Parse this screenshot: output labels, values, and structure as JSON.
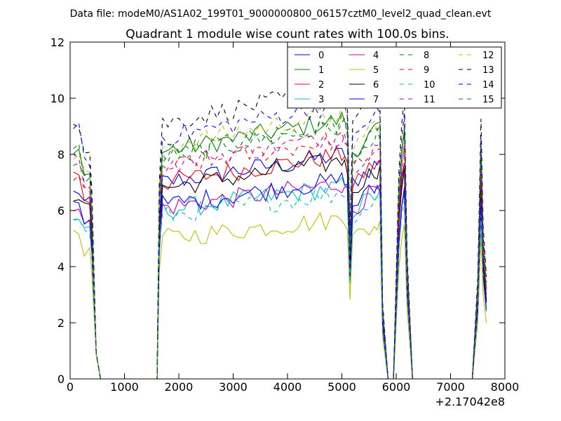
{
  "suptitle": "Data file: modeM0/AS1A02_199T01_9000000800_06157cztM0_level2_quad_clean.evt",
  "chart_data": {
    "type": "line",
    "title": "Quadrant 1 module wise count rates with 100.0s bins.",
    "xlabel": "",
    "ylabel": "",
    "x_offset_label": "+2.17042e8",
    "xlim": [
      0,
      8000
    ],
    "ylim": [
      0,
      12
    ],
    "xticks": [
      0,
      1000,
      2000,
      3000,
      4000,
      5000,
      6000,
      7000,
      8000
    ],
    "yticks": [
      0,
      2,
      4,
      6,
      8,
      10,
      12
    ],
    "grid": false,
    "legend_position": "top-right",
    "legend_columns": 4,
    "segments": [
      {
        "x": [
          60,
          160,
          260,
          360,
          400,
          480,
          560
        ],
        "drop_to": [
          360,
          480,
          560
        ]
      },
      {
        "x": [
          1600,
          1640,
          7660
        ]
      }
    ],
    "series": [
      {
        "name": "0",
        "color": "#0000ff",
        "dash": false,
        "level": 7.0
      },
      {
        "name": "1",
        "color": "#008000",
        "dash": false,
        "level": 8.1
      },
      {
        "name": "2",
        "color": "#ff0000",
        "dash": false,
        "level": 7.0
      },
      {
        "name": "3",
        "color": "#00bfbf",
        "dash": false,
        "level": 6.0
      },
      {
        "name": "4",
        "color": "#bf00bf",
        "dash": false,
        "level": 6.1
      },
      {
        "name": "5",
        "color": "#bfbf00",
        "dash": false,
        "level": 5.0
      },
      {
        "name": "6",
        "color": "#000000",
        "dash": false,
        "level": 6.8
      },
      {
        "name": "7",
        "color": "#0000ff",
        "dash": false,
        "level": 6.2
      },
      {
        "name": "8",
        "color": "#008000",
        "dash": true,
        "level": 7.9
      },
      {
        "name": "9",
        "color": "#ff0000",
        "dash": true,
        "level": 7.5
      },
      {
        "name": "10",
        "color": "#00bfbf",
        "dash": true,
        "level": 5.8
      },
      {
        "name": "11",
        "color": "#bf00bf",
        "dash": true,
        "level": 7.6
      },
      {
        "name": "12",
        "color": "#bfbf00",
        "dash": true,
        "level": 8.3
      },
      {
        "name": "13",
        "color": "#000000",
        "dash": true,
        "level": 9.1
      },
      {
        "name": "14",
        "color": "#0000ff",
        "dash": true,
        "level": 8.6
      },
      {
        "name": "15",
        "color": "#008000",
        "dash": true,
        "level": 8.0
      }
    ]
  }
}
